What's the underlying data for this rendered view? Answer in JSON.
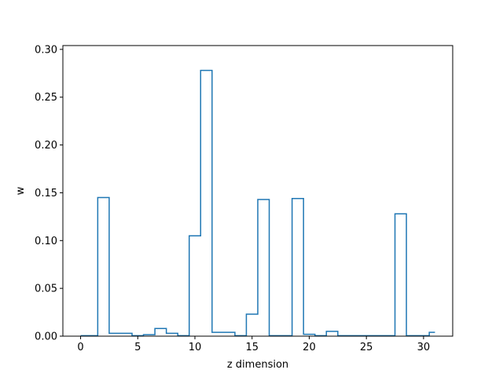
{
  "chart_data": {
    "type": "step",
    "xlabel": "z dimension",
    "ylabel": "w",
    "xlim": [
      -1.55,
      32.55
    ],
    "ylim": [
      0,
      0.304
    ],
    "x_ticks": [
      0,
      5,
      10,
      15,
      20,
      25,
      30
    ],
    "x_tick_labels": [
      "0",
      "5",
      "10",
      "15",
      "20",
      "25",
      "30"
    ],
    "y_ticks": [
      0.0,
      0.05,
      0.1,
      0.15,
      0.2,
      0.25,
      0.3
    ],
    "y_tick_labels": [
      "0.00",
      "0.05",
      "0.10",
      "0.15",
      "0.20",
      "0.25",
      "0.30"
    ],
    "step_where": "mid",
    "line_color": "#1f77b4",
    "series": [
      {
        "x": [
          0,
          1,
          2,
          3,
          4,
          5,
          6,
          7,
          8,
          9,
          10,
          11,
          12,
          13,
          14,
          15,
          16,
          17,
          18,
          19,
          20,
          21,
          22,
          23,
          24,
          25,
          26,
          27,
          28,
          29,
          30,
          31
        ],
        "values": [
          0.0005,
          0.0005,
          0.145,
          0.003,
          0.003,
          0.0005,
          0.0015,
          0.008,
          0.003,
          0.0005,
          0.105,
          0.278,
          0.004,
          0.004,
          0.0005,
          0.023,
          0.143,
          0.0005,
          0.0005,
          0.144,
          0.002,
          0.0005,
          0.005,
          0.0005,
          0.0005,
          0.0005,
          0.0005,
          0.0005,
          0.128,
          0.0005,
          0.0005,
          0.004
        ]
      }
    ]
  }
}
